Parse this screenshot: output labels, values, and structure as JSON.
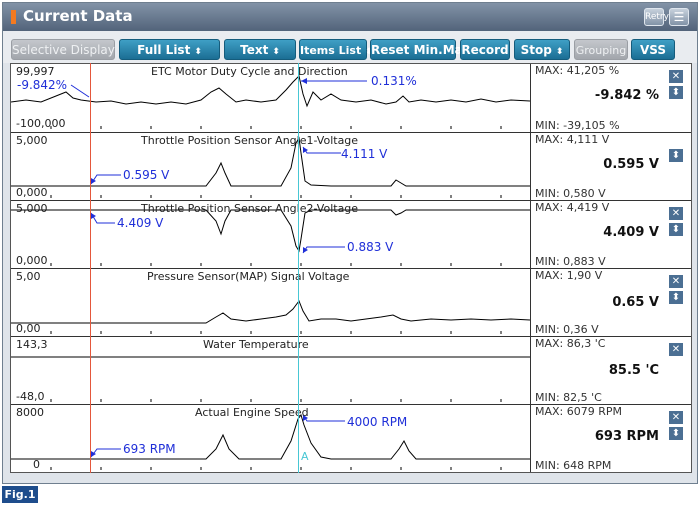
{
  "window": {
    "title": "Current Data",
    "retry_label": "Retry"
  },
  "toolbar": {
    "buttons": [
      {
        "label": "Selective Display",
        "disabled": true
      },
      {
        "label": "Full List"
      },
      {
        "label": "Text"
      },
      {
        "label": "Items List"
      },
      {
        "label": "Reset Min.Max"
      },
      {
        "label": "Record"
      },
      {
        "label": "Stop"
      },
      {
        "label": "Grouping",
        "disabled": true
      },
      {
        "label": "VSS"
      }
    ]
  },
  "rows": [
    {
      "name": "ETC Motor Duty Cycle and Direction",
      "top_scale": "99,997",
      "bottom_scale": "-100,000",
      "max": "MAX: 41,205 %",
      "current": "-9.842 %",
      "min": "MIN: -39,105 %"
    },
    {
      "name": "Throttle Position Sensor Angle1-Voltage",
      "top_scale": "5,000",
      "bottom_scale": "0,000",
      "max": "MAX: 4,111 V",
      "current": "0.595 V",
      "min": "MIN: 0,580 V"
    },
    {
      "name": "Throttle Position Sensor Angle2-Voltage",
      "top_scale": "5,000",
      "bottom_scale": "0,000",
      "max": "MAX: 4,419 V",
      "current": "4.409 V",
      "min": "MIN: 0,883 V"
    },
    {
      "name": "Pressure Sensor(MAP) Signal Voltage",
      "top_scale": "5,00",
      "bottom_scale": "0,00",
      "max": "MAX:  1,90 V",
      "current": "0.65 V",
      "min": "MIN:  0,36 V"
    },
    {
      "name": "Water Temperature",
      "top_scale": "143,3",
      "bottom_scale": "-48,0",
      "max": "MAX:  86,3 'C",
      "current": "85.5 'C",
      "min": "MIN: 82,5 'C"
    },
    {
      "name": "Actual Engine Speed",
      "top_scale": "8000",
      "bottom_scale": "0",
      "max": "MAX:  6079 RPM",
      "current": "693 RPM",
      "min": "MIN:   648 RPM"
    }
  ],
  "annotations": {
    "etc_left": "-9.842%",
    "etc_right": "0.131%",
    "tps1_left": "0.595 V",
    "tps1_right": "4.111 V",
    "tps2_left": "4.409 V",
    "tps2_right": "0.883 V",
    "rpm_left": "693 RPM",
    "rpm_right": "4000 RPM",
    "cursor_label": "A"
  },
  "colors": {
    "trace": "#000000",
    "cursor_red": "#e4573b",
    "cursor_cyan": "#47c7d4",
    "annotation": "#1f2fd8"
  },
  "figure_label": "Fig.1"
}
